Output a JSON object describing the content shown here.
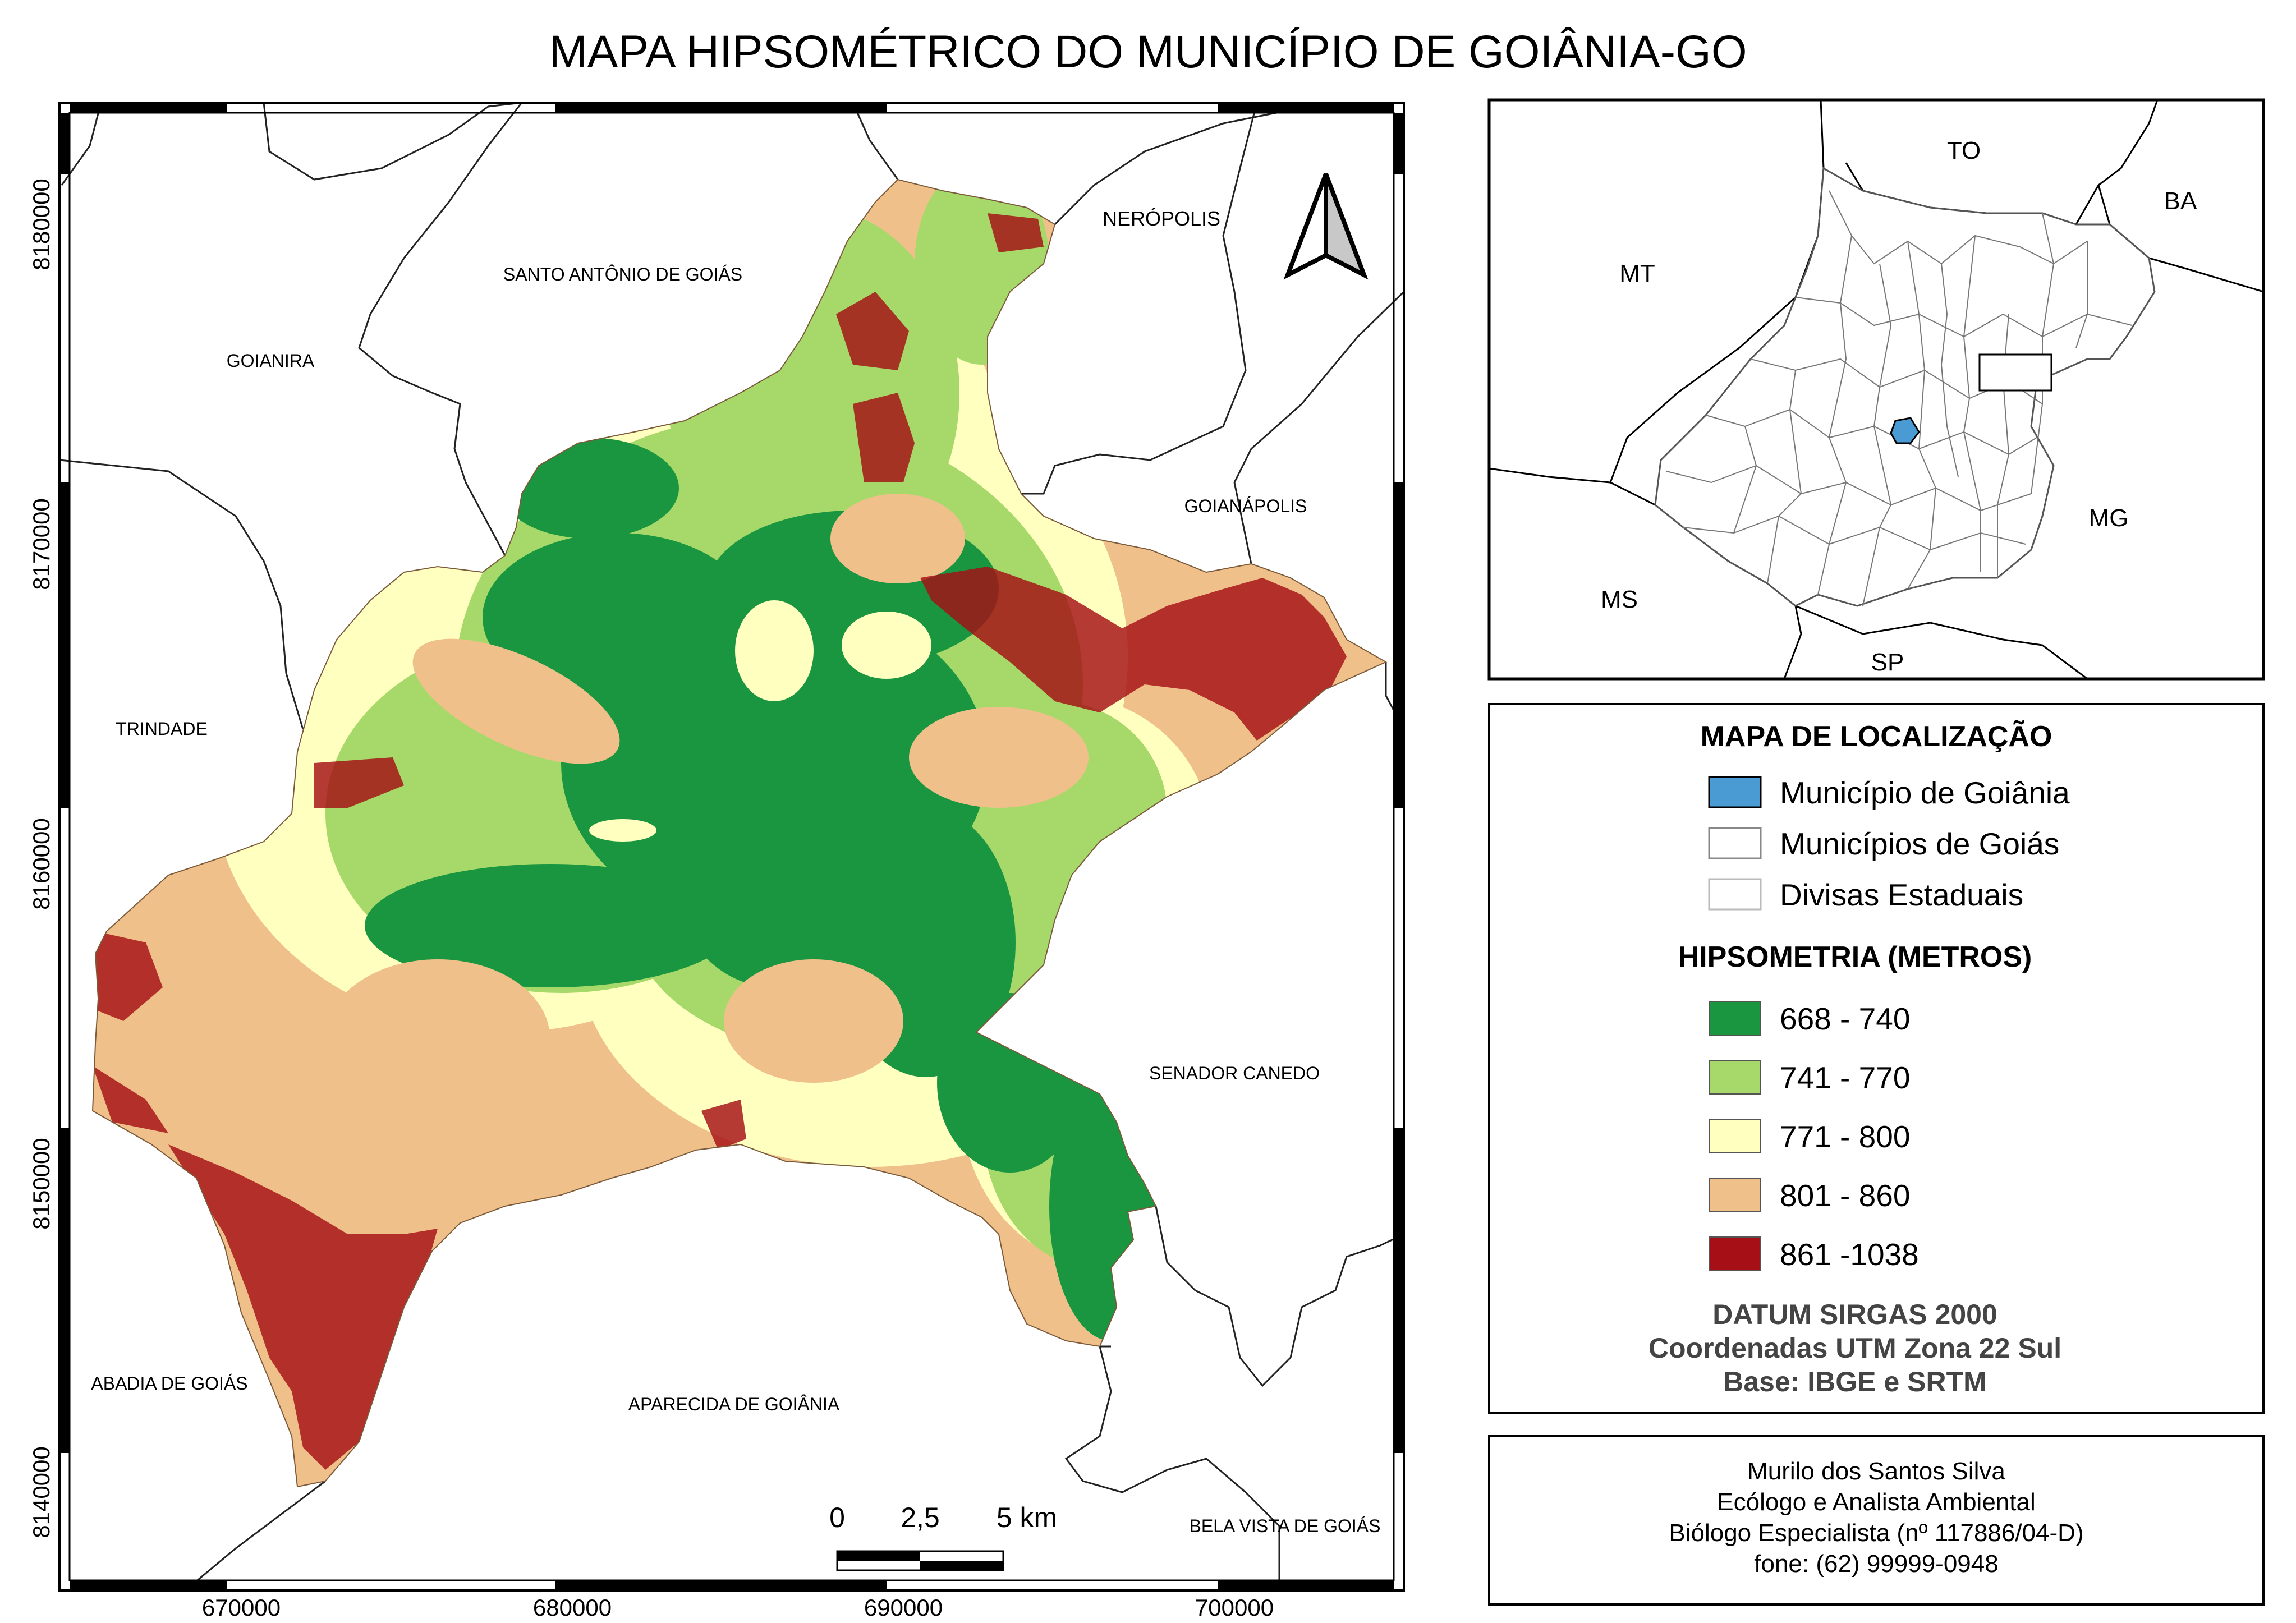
{
  "title": "MAPA HIPSOMÉTRICO DO MUNICÍPIO DE GOIÂNIA-GO",
  "neighbors": {
    "santo_antonio": "SANTO ANTÔNIO DE GOIÁS",
    "neropolis": "NERÓPOLIS",
    "goianira": "GOIANIRA",
    "goianapolis": "GOIANÁPOLIS",
    "trindade": "TRINDADE",
    "senador_canedo": "SENADOR CANEDO",
    "abadia": "ABADIA DE GOIÁS",
    "aparecida": "APARECIDA DE GOIÂNIA",
    "bela_vista": "BELA VISTA DE GOIÁS"
  },
  "axes": {
    "y_ticks": [
      "8180000",
      "8170000",
      "8160000",
      "8150000",
      "8140000"
    ],
    "x_ticks": [
      "670000",
      "680000",
      "690000",
      "700000"
    ]
  },
  "scale_bar": {
    "t0": "0",
    "t1": "2,5",
    "t2": "5 km"
  },
  "inset": {
    "states": {
      "to": "TO",
      "ba": "BA",
      "mt": "MT",
      "mg": "MG",
      "ms": "MS",
      "sp": "SP"
    }
  },
  "legend": {
    "loc_title": "MAPA DE LOCALIZAÇÃO",
    "loc_items": [
      {
        "label": "Município de Goiânia",
        "color": "#4a9bd4"
      },
      {
        "label": "Municípios de Goiás",
        "color": "#ffffff"
      },
      {
        "label": "Divisas Estaduais",
        "color": "#ffffff"
      }
    ],
    "hyp_title": "HIPSOMETRIA (METROS)",
    "hyp_items": [
      {
        "label": "668 - 740",
        "color": "#1a9641"
      },
      {
        "label": "741 - 770",
        "color": "#a6d96a"
      },
      {
        "label": "771 - 800",
        "color": "#ffffc0"
      },
      {
        "label": "801 - 860",
        "color": "#f0c08a"
      },
      {
        "label": "861 -1038",
        "color": "#a50f15"
      }
    ],
    "datum": "DATUM SIRGAS 2000",
    "coords": "Coordenadas UTM Zona 22 Sul",
    "base": "Base: IBGE e SRTM"
  },
  "credits": {
    "name": "Murilo dos Santos Silva",
    "role": "Ecólogo e Analista Ambiental",
    "reg": "Biólogo Especialista (nº 117886/04-D)",
    "phone": "fone: (62) 99999-0948"
  }
}
